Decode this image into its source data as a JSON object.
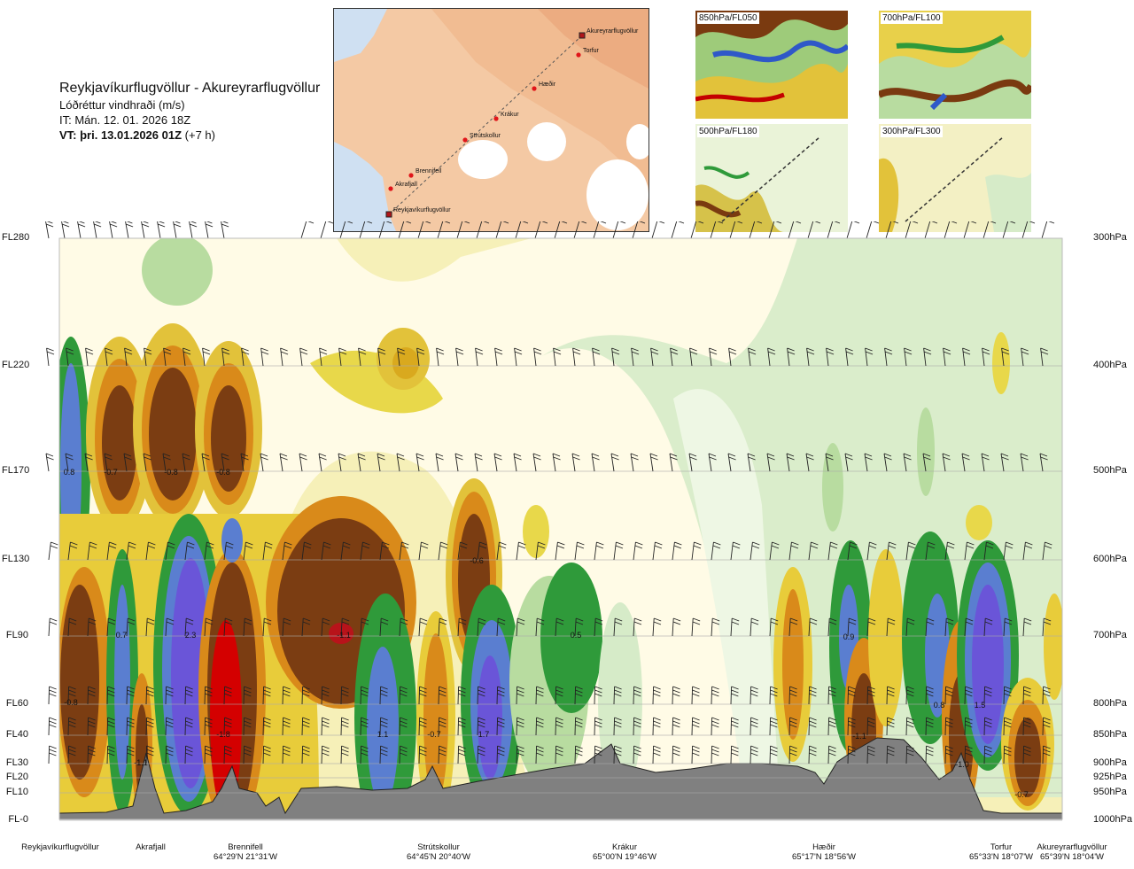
{
  "title": {
    "route": "Reykjavíkurflugvöllur - Akureyrarflugvöllur",
    "variable": "Lóðréttur vindhraði (m/s)",
    "issue_time": "IT: Mán. 12. 01. 2026 18Z",
    "valid_prefix": "VT: þri. 13.01.2026 01Z",
    "valid_suffix": "(+7 h)"
  },
  "map": {
    "points": [
      {
        "name": "Akureyrarflugvöllur",
        "airport": true
      },
      {
        "name": "Torfur"
      },
      {
        "name": "Hæðir"
      },
      {
        "name": "Krákur"
      },
      {
        "name": "Strútskollur"
      },
      {
        "name": "Brennifell"
      },
      {
        "name": "Akrafjall"
      },
      {
        "name": "Reykjavíkurflugvöllur",
        "airport": true
      }
    ]
  },
  "thumbnails": [
    {
      "label": "850hPa/FL050"
    },
    {
      "label": "700hPa/FL100"
    },
    {
      "label": "500hPa/FL180"
    },
    {
      "label": "300hPa/FL300"
    }
  ],
  "colors": {
    "strong_down": "#7b3d12",
    "down_orange": "#d98a1a",
    "down_yellow": "#e8cc3a",
    "weak": "#f3eeb0",
    "neutral": "#fffbe6",
    "weak_up": "#d6ebc8",
    "up_green": "#2f9a3a",
    "up_blue": "#5a7ed0",
    "strong_up": "#6a55d8",
    "extreme_down": "#d40000",
    "terrain": "#808080"
  },
  "chart_data": {
    "type": "heatmap",
    "description_unit": "m/s",
    "y_levels": [
      {
        "fl": "FL280",
        "hpa": "300hPa"
      },
      {
        "fl": "FL220",
        "hpa": "400hPa"
      },
      {
        "fl": "FL170",
        "hpa": "500hPa"
      },
      {
        "fl": "FL130",
        "hpa": "600hPa"
      },
      {
        "fl": "FL90",
        "hpa": "700hPa"
      },
      {
        "fl": "FL60",
        "hpa": "800hPa"
      },
      {
        "fl": "FL40",
        "hpa": "850hPa"
      },
      {
        "fl": "FL30",
        "hpa": "900hPa"
      },
      {
        "fl": "FL20",
        "hpa": "925hPa"
      },
      {
        "fl": "FL10",
        "hpa": "950hPa"
      },
      {
        "fl": "FL-0",
        "hpa": "1000hPa"
      }
    ],
    "x_locations": [
      {
        "name": "Reykjavíkurflugvöllur",
        "coord": ""
      },
      {
        "name": "Akrafjall",
        "coord": ""
      },
      {
        "name": "Brennifell",
        "coord": "64°29'N 21°31'W"
      },
      {
        "name": "Strútskollur",
        "coord": "64°45'N 20°40'W"
      },
      {
        "name": "Krákur",
        "coord": "65°00'N 19°46'W"
      },
      {
        "name": "Hæðir",
        "coord": "65°17'N 18°56'W"
      },
      {
        "name": "Torfur",
        "coord": "65°33'N 18°07'W"
      },
      {
        "name": "Akureyrarflugvöllur",
        "coord": "65°39'N 18°04'W"
      }
    ],
    "annotations": [
      {
        "text": "0.8",
        "level": "FL170",
        "near": "Reykjavíkurflugvöllur"
      },
      {
        "text": "-0.7",
        "level": "FL170",
        "near": "Akrafjall"
      },
      {
        "text": "-0.8",
        "level": "FL170",
        "near": "Akrafjall-Brennifell"
      },
      {
        "text": "-0.8",
        "level": "FL170",
        "near": "Brennifell"
      },
      {
        "text": "-0.6",
        "level": "FL130",
        "near": "Strútskollur"
      },
      {
        "text": "0.7",
        "level": "FL90",
        "near": "Akrafjall"
      },
      {
        "text": "2.3",
        "level": "FL90",
        "near": "Akrafjall-Brennifell"
      },
      {
        "text": "-1.1",
        "level": "FL90",
        "near": "Brennifell-Strútskollur"
      },
      {
        "text": "0.5",
        "level": "FL90",
        "near": "Krákur"
      },
      {
        "text": "0.9",
        "level": "FL90",
        "near": "Hæðir"
      },
      {
        "text": "-0.8",
        "level": "FL60",
        "near": "Reykjavíkurflugvöllur"
      },
      {
        "text": "0.8",
        "level": "FL60",
        "near": "Torfur"
      },
      {
        "text": "1.5",
        "level": "FL60",
        "near": "Torfur"
      },
      {
        "text": "-1.8",
        "level": "FL40",
        "near": "Brennifell"
      },
      {
        "text": "1.1",
        "level": "FL40",
        "near": "Strútskollur"
      },
      {
        "text": "-0.7",
        "level": "FL40",
        "near": "Strútskollur"
      },
      {
        "text": "1.7",
        "level": "FL40",
        "near": "Strútskollur"
      },
      {
        "text": "-1.1",
        "level": "FL40",
        "near": "Hæðir"
      },
      {
        "text": "-1.1",
        "level": "FL30",
        "near": "Akrafjall"
      },
      {
        "text": "-1.0",
        "level": "FL30",
        "near": "Torfur"
      },
      {
        "text": "-0.7",
        "level": "FL10",
        "near": "Akureyrarflugvöllur"
      }
    ]
  }
}
